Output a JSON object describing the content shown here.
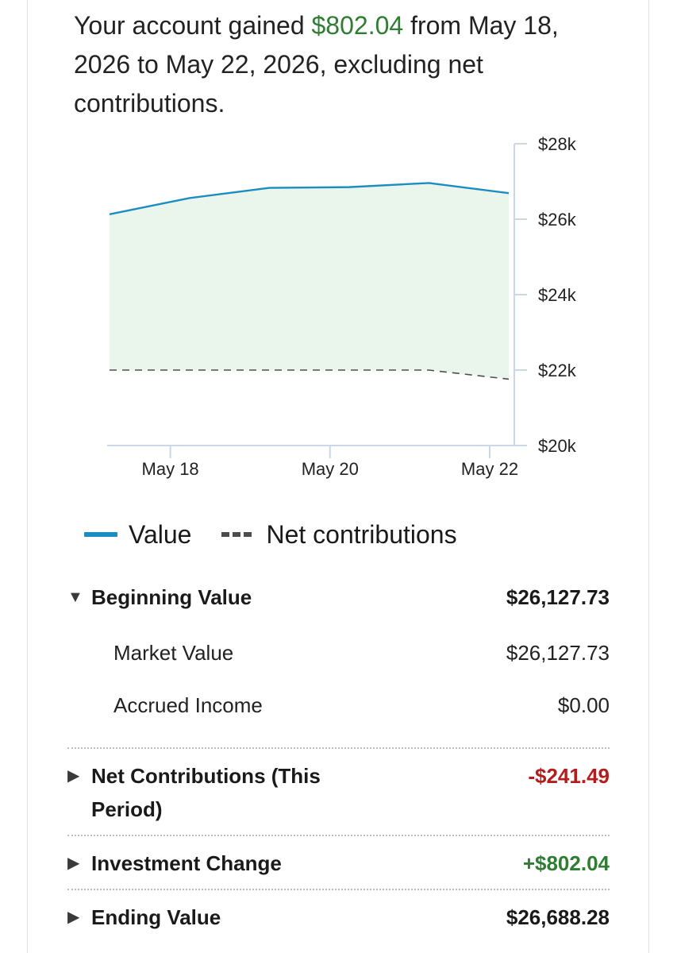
{
  "summary": {
    "prefix": "Your account gained ",
    "gain": "$802.04",
    "suffix": " from May 18, 2026 to May 22, 2026, excluding net contributions."
  },
  "colors": {
    "value_line": "#1b8dc1",
    "value_fill": "#eaf6ec",
    "contributions_line": "#4d4d4d",
    "axis": "#c9d7e6",
    "gain_green": "#2e7d32",
    "loss_red": "#b71c1c"
  },
  "chart_data": {
    "type": "area",
    "x_tick_labels": [
      "May 18",
      "May 20",
      "May 22"
    ],
    "y_tick_labels": [
      "$28k",
      "$26k",
      "$24k",
      "$22k",
      "$20k"
    ],
    "y_ticks": [
      28000,
      26000,
      24000,
      22000,
      20000
    ],
    "ylim": [
      20000,
      28000
    ],
    "y_axis_side": "right",
    "series": [
      {
        "name": "Value",
        "style": "solid-area",
        "x": [
          "2026-05-17",
          "2026-05-18",
          "2026-05-19",
          "2026-05-20",
          "2026-05-21",
          "2026-05-22"
        ],
        "y": [
          26130,
          26560,
          26830,
          26850,
          26960,
          26690
        ]
      },
      {
        "name": "Net contributions",
        "style": "dashed",
        "x": [
          "2026-05-17",
          "2026-05-18",
          "2026-05-19",
          "2026-05-20",
          "2026-05-21",
          "2026-05-22"
        ],
        "y": [
          22000,
          22000,
          22000,
          22000,
          22000,
          21760
        ]
      }
    ],
    "legend_position": "bottom"
  },
  "legend": {
    "value": "Value",
    "contributions": "Net contributions"
  },
  "rows": {
    "beginning": {
      "label": "Beginning Value",
      "value": "$26,127.73"
    },
    "market": {
      "label": "Market Value",
      "value": "$26,127.73"
    },
    "accrued": {
      "label": "Accrued Income",
      "value": "$0.00"
    },
    "net_contrib": {
      "label": "Net Contributions (This Period)",
      "value": "-$241.49"
    },
    "investment": {
      "label": "Investment Change",
      "value": "+$802.04"
    },
    "ending": {
      "label": "Ending Value",
      "value": "$26,688.28"
    }
  }
}
